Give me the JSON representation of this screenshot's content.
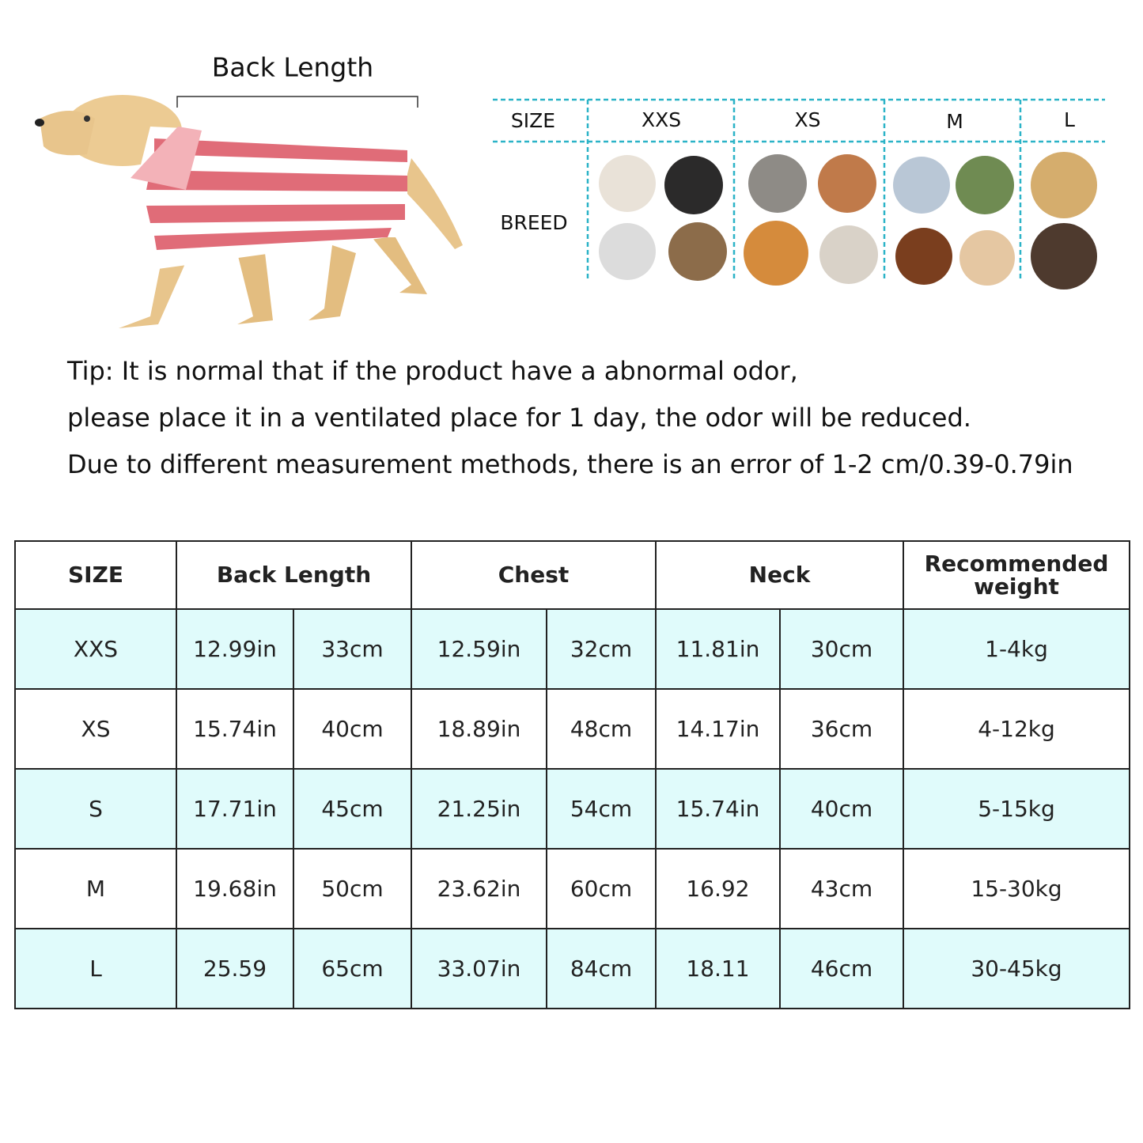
{
  "diagram": {
    "back_length_label": "Back Length"
  },
  "breed_table": {
    "size_label": "SIZE",
    "sizes": [
      "XXS",
      "XS",
      "M",
      "L"
    ],
    "breed_label": "BREED"
  },
  "tips": [
    "Tip: It is normal that if the product have a abnormal odor,",
    "please place it in a ventilated place for 1 day, the odor will be reduced.",
    "Due to different measurement methods, there is an error of 1-2 cm/0.39-0.79in"
  ],
  "table": {
    "header": [
      "SIZE",
      "Back Length",
      "Chest",
      "Neck",
      "Recommended weight"
    ],
    "rows": [
      [
        "XXS",
        "12.99in",
        "33cm",
        "12.59in",
        "32cm",
        "11.81in",
        "30cm",
        "1-4kg"
      ],
      [
        "XS",
        "15.74in",
        "40cm",
        "18.89in",
        "48cm",
        "14.17in",
        "36cm",
        "4-12kg"
      ],
      [
        "S",
        "17.71in",
        "45cm",
        "21.25in",
        "54cm",
        "15.74in",
        "40cm",
        "5-15kg"
      ],
      [
        "M",
        "19.68in",
        "50cm",
        "23.62in",
        "60cm",
        "16.92",
        "43cm",
        "15-30kg"
      ],
      [
        "L",
        "25.59",
        "65cm",
        "33.07in",
        "84cm",
        "18.11",
        "46cm",
        "30-45kg"
      ]
    ]
  }
}
